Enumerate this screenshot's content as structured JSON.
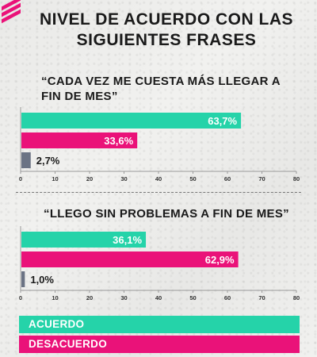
{
  "title": "NIVEL DE ACUERDO CON LAS SIGUIENTES FRASES",
  "colors": {
    "acuerdo": "#25d3a9",
    "desacuerdo": "#ea1279",
    "other": "#6b7384",
    "logo": "#ea1279"
  },
  "legend": [
    {
      "label": "ACUERDO",
      "color": "#25d3a9"
    },
    {
      "label": "DESACUERDO",
      "color": "#ea1279"
    }
  ],
  "chart_data": [
    {
      "type": "bar",
      "orientation": "horizontal",
      "title": "“CADA VEZ ME CUESTA MÁS LLEGAR A FIN DE MES”",
      "values": [
        63.7,
        33.6,
        2.7
      ],
      "value_labels": [
        "63,7%",
        "33,6%",
        "2,7%"
      ],
      "colors": [
        "#25d3a9",
        "#ea1279",
        "#6b7384"
      ],
      "xlim": [
        0,
        80
      ],
      "xticks": [
        "0",
        "10",
        "20",
        "30",
        "40",
        "50",
        "60",
        "70",
        "80"
      ]
    },
    {
      "type": "bar",
      "orientation": "horizontal",
      "title": "“LLEGO SIN PROBLEMAS A FIN DE MES”",
      "values": [
        36.1,
        62.9,
        1.0
      ],
      "value_labels": [
        "36,1%",
        "62,9%",
        "1,0%"
      ],
      "colors": [
        "#25d3a9",
        "#ea1279",
        "#6b7384"
      ],
      "xlim": [
        0,
        80
      ],
      "xticks": [
        "0",
        "10",
        "20",
        "30",
        "40",
        "50",
        "60",
        "70",
        "80"
      ]
    }
  ]
}
